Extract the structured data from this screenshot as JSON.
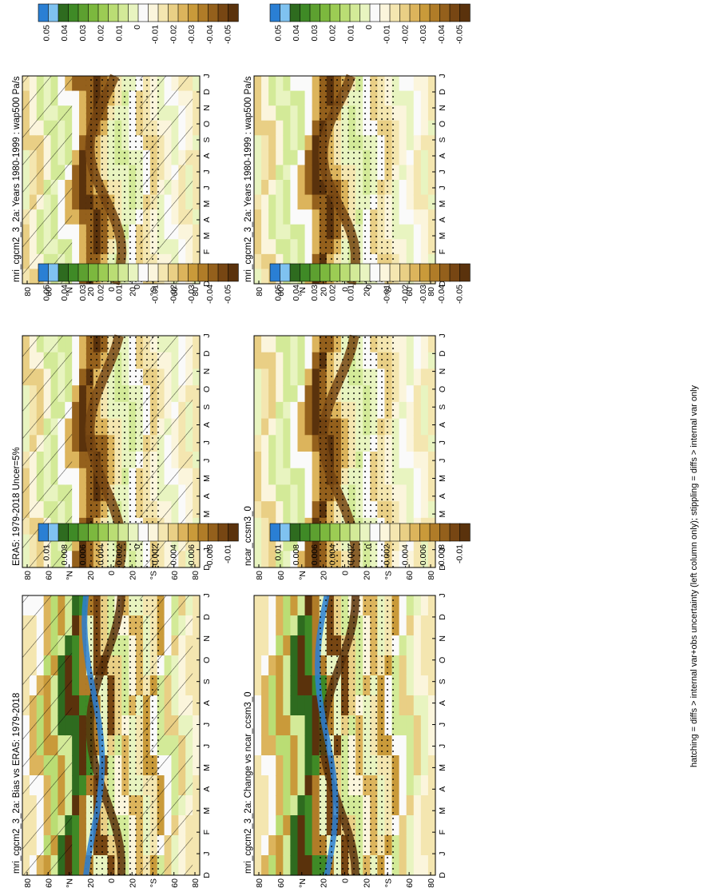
{
  "figure": {
    "footnote": "hatching = diffs > internal var+obs uncertainty (left column only); stippling = diffs > internal var only"
  },
  "colorbars": {
    "main": {
      "labels": [
        "0.05",
        "0.04",
        "0.03",
        "0.02",
        "0.01",
        "0",
        "-0.01",
        "-0.02",
        "-0.03",
        "-0.04",
        "-0.05"
      ],
      "colors": [
        "#2a7fd4",
        "#7fc2f0",
        "#2e6b1f",
        "#3f8a26",
        "#5da030",
        "#7cb83e",
        "#9ccc54",
        "#badd74",
        "#d3ea98",
        "#e8f4c0",
        "#fafafa",
        "#fbf5dc",
        "#f4e6b0",
        "#e9cf85",
        "#dcb45c",
        "#c99a3a",
        "#b07c28",
        "#94601c",
        "#774613",
        "#5a320c"
      ]
    },
    "diff": {
      "labels": [
        "0.01",
        "0.008",
        "0.006",
        "0.004",
        "0.002",
        "0",
        "-0.002",
        "-0.004",
        "-0.006",
        "-0.008",
        "-0.01"
      ],
      "colors": [
        "#2a7fd4",
        "#7fc2f0",
        "#2e6b1f",
        "#3f8a26",
        "#5da030",
        "#7cb83e",
        "#9ccc54",
        "#badd74",
        "#d3ea98",
        "#e8f4c0",
        "#fafafa",
        "#fbf5dc",
        "#f4e6b0",
        "#e9cf85",
        "#dcb45c",
        "#c99a3a",
        "#b07c28",
        "#94601c",
        "#774613",
        "#5a320c"
      ]
    }
  },
  "chart_data": [
    {
      "type": "heatmap",
      "title": "mri_cgcm2_3_2a: Years 1980-1999 : wap500 Pa/s",
      "months": [
        "D",
        "J",
        "F",
        "M",
        "A",
        "M",
        "J",
        "J",
        "A",
        "S",
        "O",
        "N",
        "D",
        "J"
      ],
      "lat_labels": [
        "80",
        "60",
        "°N",
        "20",
        "0",
        "20",
        "°S",
        "60",
        "80"
      ],
      "zero_line_month_shift": [
        1,
        0,
        -1,
        -2,
        -3,
        -4,
        -4,
        -3,
        -2,
        -1,
        0,
        1,
        1,
        1
      ],
      "colorbar": "main",
      "hatching": true,
      "stippling": true
    },
    {
      "type": "heatmap",
      "title": "mri_cgcm2_3_2a: Years 1980-1999 : wap500 Pa/s",
      "months": [
        "D",
        "J",
        "F",
        "M",
        "A",
        "M",
        "J",
        "J",
        "A",
        "S",
        "O",
        "N",
        "D",
        "J"
      ],
      "lat_labels": [
        "80",
        "60",
        "°N",
        "20",
        "0",
        "20",
        "°S",
        "60",
        "80"
      ],
      "colorbar": "main",
      "hatching": false,
      "stippling": true
    },
    {
      "type": "heatmap",
      "title": "ERA5: 1979-2018 Uncer=5%",
      "months": [
        "D",
        "J",
        "F",
        "M",
        "A",
        "M",
        "J",
        "J",
        "A",
        "S",
        "O",
        "N",
        "D",
        "J"
      ],
      "lat_labels": [
        "80",
        "60",
        "°N",
        "20",
        "0",
        "20",
        "°S",
        "60",
        "80"
      ],
      "colorbar": "main",
      "hatching": true,
      "stippling": true
    },
    {
      "type": "heatmap",
      "title": "ncar_ccsm3_0",
      "months": [
        "D",
        "J",
        "F",
        "M",
        "A",
        "M",
        "J",
        "J",
        "A",
        "S",
        "O",
        "N",
        "D",
        "J"
      ],
      "lat_labels": [
        "80",
        "60",
        "°N",
        "20",
        "0",
        "20",
        "°S",
        "60",
        "80"
      ],
      "colorbar": "main",
      "hatching": false,
      "stippling": true
    },
    {
      "type": "heatmap",
      "title": "mri_cgcm2_3_2a: Bias vs ERA5: 1979-2018",
      "months": [
        "D",
        "J",
        "F",
        "M",
        "A",
        "M",
        "J",
        "J",
        "A",
        "S",
        "O",
        "N",
        "D",
        "J"
      ],
      "lat_labels": [
        "80",
        "60",
        "°N",
        "20",
        "0",
        "20",
        "°S",
        "60",
        "80"
      ],
      "colorbar": "diff",
      "hatching": true,
      "stippling": true
    },
    {
      "type": "heatmap",
      "title": "mri_cgcm2_3_2a: Change vs ncar_ccsm3_0",
      "months": [
        "D",
        "J",
        "F",
        "M",
        "A",
        "M",
        "J",
        "J",
        "A",
        "S",
        "O",
        "N",
        "D",
        "J"
      ],
      "lat_labels": [
        "80",
        "60",
        "°N",
        "20",
        "0",
        "20",
        "°S",
        "60",
        "80"
      ],
      "colorbar": "diff",
      "hatching": false,
      "stippling": true
    }
  ]
}
